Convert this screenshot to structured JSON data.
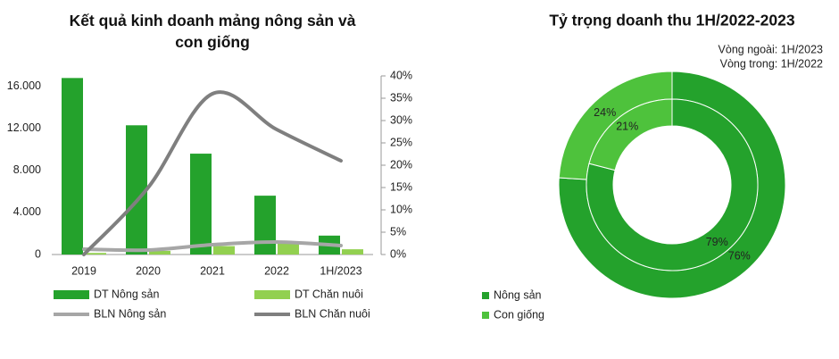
{
  "chart_data": [
    {
      "type": "combo",
      "title": "Kết quả kinh doanh mảng nông sản và con giống",
      "categories": [
        "2019",
        "2020",
        "2021",
        "2022",
        "1H/2023"
      ],
      "series": [
        {
          "name": "DT Nông sản",
          "kind": "bar",
          "color": "#24a22c",
          "values": [
            16800,
            12300,
            9600,
            5600,
            1800
          ]
        },
        {
          "name": "DT Chăn nuôi",
          "kind": "bar",
          "color": "#92d050",
          "values": [
            150,
            350,
            800,
            1200,
            500
          ]
        },
        {
          "name": "BLN Nông sản",
          "kind": "line",
          "axis": "y2",
          "color": "#a6a6a6",
          "values": [
            1.2,
            1.0,
            2.2,
            2.8,
            2.0
          ]
        },
        {
          "name": "BLN Chăn nuôi",
          "kind": "line",
          "axis": "y2",
          "color": "#7f7f7f",
          "values": [
            0,
            15,
            36,
            28,
            21
          ]
        }
      ],
      "ylim": [
        0,
        17000
      ],
      "yticks": [
        0,
        {
          "value": 4000,
          "label": "4.000"
        },
        {
          "value": 8000,
          "label": "8.000"
        },
        {
          "value": 12000,
          "label": "12.000"
        },
        {
          "value": 16000,
          "label": "16.000"
        }
      ],
      "y2lim": [
        0,
        40
      ],
      "y2ticks": [
        {
          "value": 0,
          "label": "0%"
        },
        {
          "value": 5,
          "label": "5%"
        },
        {
          "value": 10,
          "label": "10%"
        },
        {
          "value": 15,
          "label": "15%"
        },
        {
          "value": 20,
          "label": "20%"
        },
        {
          "value": 25,
          "label": "25%"
        },
        {
          "value": 30,
          "label": "30%"
        },
        {
          "value": 35,
          "label": "35%"
        },
        {
          "value": 40,
          "label": "40%"
        }
      ]
    },
    {
      "type": "donut",
      "title": "Tỷ trọng doanh thu 1H/2022-2023",
      "subtitle": [
        "Vòng ngoài: 1H/2023",
        "Vòng trong: 1H/2022"
      ],
      "categories": [
        "Nông sản",
        "Con giống"
      ],
      "colors": [
        "#24a22c",
        "#4ec23c"
      ],
      "series": [
        {
          "name": "1H/2023",
          "ring": "outer",
          "values": [
            76,
            24
          ],
          "value_labels": [
            "76%",
            "24%"
          ]
        },
        {
          "name": "1H/2022",
          "ring": "inner",
          "values": [
            79,
            21
          ],
          "value_labels": [
            "79%",
            "21%"
          ]
        }
      ]
    }
  ]
}
